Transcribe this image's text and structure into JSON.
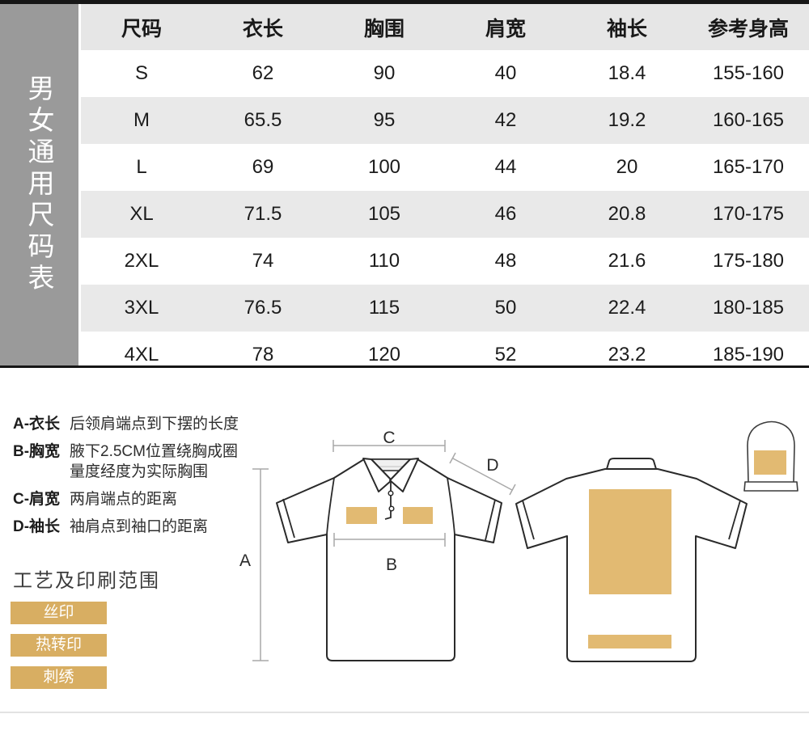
{
  "size_chart": {
    "sidebar_label": "男女通用尺码表",
    "columns": [
      "尺码",
      "衣长",
      "胸围",
      "肩宽",
      "袖长",
      "参考身高"
    ],
    "rows": [
      [
        "S",
        "62",
        "90",
        "40",
        "18.4",
        "155-160"
      ],
      [
        "M",
        "65.5",
        "95",
        "42",
        "19.2",
        "160-165"
      ],
      [
        "L",
        "69",
        "100",
        "44",
        "20",
        "165-170"
      ],
      [
        "XL",
        "71.5",
        "105",
        "46",
        "20.8",
        "170-175"
      ],
      [
        "2XL",
        "74",
        "110",
        "48",
        "21.6",
        "175-180"
      ],
      [
        "3XL",
        "76.5",
        "115",
        "50",
        "22.4",
        "180-185"
      ],
      [
        "4XL",
        "78",
        "120",
        "52",
        "23.2",
        "185-190"
      ]
    ]
  },
  "legend": {
    "items": [
      {
        "label": "A-衣长",
        "desc": "后领肩端点到下摆的长度"
      },
      {
        "label": "B-胸宽",
        "desc": "腋下2.5CM位置绕胸成圈\n量度经度为实际胸围"
      },
      {
        "label": "C-肩宽",
        "desc": "两肩端点的距离"
      },
      {
        "label": "D-袖长",
        "desc": "袖肩点到袖口的距离"
      }
    ]
  },
  "craft": {
    "title": "工艺及印刷范围",
    "tags": [
      "丝印",
      "热转印",
      "刺绣"
    ]
  },
  "diagram_labels": {
    "length": "A",
    "chest": "B",
    "shoulder": "C",
    "sleeve": "D"
  },
  "colors": {
    "top_bar_black": "#161616",
    "sidebar_gray": "#9a9a9a",
    "header_row_gray": "#e6e6e6",
    "stripe_row_gray": "#e9e9e9",
    "tag_gold": "#d8ae62",
    "print_area_gold": "#e2ba72"
  }
}
